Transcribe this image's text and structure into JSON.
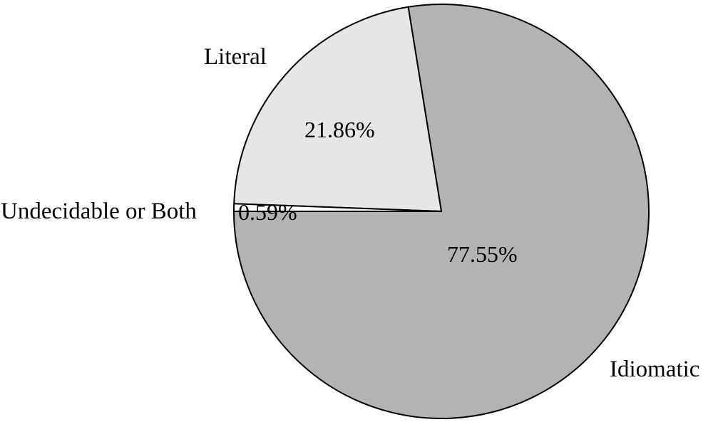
{
  "chart_data": {
    "type": "pie",
    "slices": [
      {
        "label": "Idiomatic",
        "value": 77.55,
        "display": "77.55%",
        "color": "#b3b3b3"
      },
      {
        "label": "Literal",
        "value": 21.86,
        "display": "21.86%",
        "color": "#e6e6e6"
      },
      {
        "label": "Undecidable or Both",
        "value": 0.59,
        "display": "0.59%",
        "color": "#ffffff"
      }
    ],
    "start_angle_deg": 180,
    "direction": "counterclockwise",
    "outline_color": "#000000"
  }
}
